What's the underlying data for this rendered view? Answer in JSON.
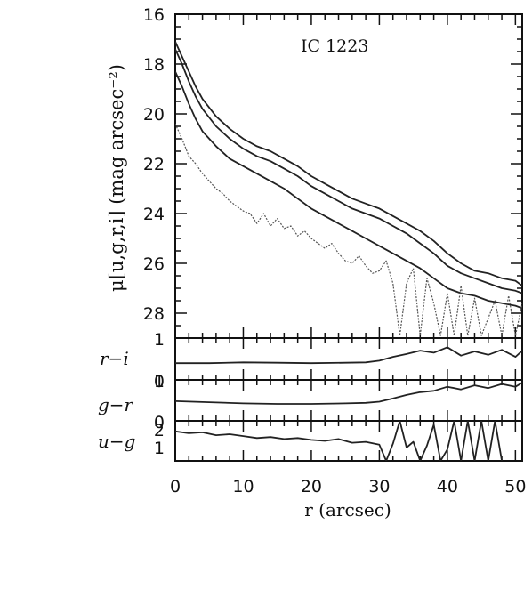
{
  "chart_data": {
    "type": "line",
    "title": "IC 1223",
    "xlabel": "r (arcsec)",
    "xlim": [
      0,
      51
    ],
    "xticks": [
      0,
      10,
      20,
      30,
      40,
      50
    ],
    "panels": [
      {
        "id": "mu",
        "ylabel": "μ[u,g,r,i] (mag arcsec⁻²)",
        "ylim": [
          29,
          16
        ],
        "yticks": [
          16,
          18,
          20,
          22,
          24,
          26,
          28
        ],
        "series": [
          {
            "style": "solid",
            "x": [
              0,
              1,
              2,
              3,
              4,
              6,
              8,
              10,
              12,
              14,
              16,
              18,
              20,
              22,
              24,
              26,
              28,
              30,
              32,
              34,
              36,
              38,
              40,
              42,
              44,
              46,
              48,
              50,
              51
            ],
            "y": [
              17.1,
              17.7,
              18.3,
              18.9,
              19.4,
              20.1,
              20.6,
              21.0,
              21.3,
              21.5,
              21.8,
              22.1,
              22.5,
              22.8,
              23.1,
              23.4,
              23.6,
              23.8,
              24.1,
              24.4,
              24.7,
              25.1,
              25.6,
              26.0,
              26.3,
              26.4,
              26.6,
              26.7,
              26.9
            ]
          },
          {
            "style": "solid",
            "x": [
              0,
              1,
              2,
              3,
              4,
              6,
              8,
              10,
              12,
              14,
              16,
              18,
              20,
              22,
              24,
              26,
              28,
              30,
              32,
              34,
              36,
              38,
              40,
              42,
              44,
              46,
              48,
              50,
              51
            ],
            "y": [
              17.4,
              18.0,
              18.7,
              19.3,
              19.8,
              20.5,
              21.0,
              21.4,
              21.7,
              21.9,
              22.2,
              22.5,
              22.9,
              23.2,
              23.5,
              23.8,
              24.0,
              24.2,
              24.5,
              24.8,
              25.2,
              25.6,
              26.1,
              26.4,
              26.6,
              26.8,
              27.0,
              27.1,
              27.2
            ]
          },
          {
            "style": "solid",
            "x": [
              0,
              1,
              2,
              3,
              4,
              6,
              8,
              10,
              12,
              14,
              16,
              18,
              20,
              22,
              24,
              26,
              28,
              30,
              32,
              34,
              36,
              38,
              40,
              42,
              44,
              46,
              48,
              50,
              51
            ],
            "y": [
              18.3,
              18.9,
              19.6,
              20.2,
              20.7,
              21.3,
              21.8,
              22.1,
              22.4,
              22.7,
              23.0,
              23.4,
              23.8,
              24.1,
              24.4,
              24.7,
              25.0,
              25.3,
              25.6,
              25.9,
              26.2,
              26.6,
              27.0,
              27.2,
              27.3,
              27.5,
              27.6,
              27.7,
              27.8
            ]
          },
          {
            "style": "dotted",
            "x": [
              0,
              1,
              2,
              3,
              4,
              5,
              6,
              7,
              8,
              9,
              10,
              11,
              12,
              13,
              14,
              15,
              16,
              17,
              18,
              19,
              20,
              21,
              22,
              23,
              24,
              25,
              26,
              27,
              28,
              29,
              30,
              31,
              32,
              33,
              34,
              35,
              36,
              37,
              38,
              39,
              40,
              41,
              42,
              43,
              44,
              45,
              46,
              47,
              48,
              49,
              50,
              51
            ],
            "y": [
              20.4,
              21.0,
              21.7,
              22.0,
              22.4,
              22.7,
              23.0,
              23.2,
              23.5,
              23.7,
              23.9,
              24.0,
              24.4,
              24.0,
              24.5,
              24.2,
              24.6,
              24.5,
              24.9,
              24.7,
              25.0,
              25.2,
              25.4,
              25.2,
              25.6,
              25.9,
              26.0,
              25.7,
              26.1,
              26.4,
              26.3,
              25.9,
              26.8,
              28.9,
              26.8,
              26.2,
              28.9,
              26.6,
              27.6,
              28.9,
              27.2,
              28.9,
              26.9,
              28.9,
              27.4,
              28.9,
              28.2,
              27.5,
              28.9,
              27.3,
              28.9,
              27.6
            ]
          }
        ]
      },
      {
        "id": "r-i",
        "ylabel": "r−i",
        "ylim": [
          0,
          1
        ],
        "ytick_labels": [
          "1",
          "0"
        ],
        "series": [
          {
            "style": "solid",
            "x": [
              0,
              5,
              10,
              15,
              20,
              25,
              28,
              30,
              32,
              34,
              36,
              38,
              40,
              42,
              44,
              46,
              48,
              50,
              51
            ],
            "y": [
              0.4,
              0.4,
              0.42,
              0.41,
              0.4,
              0.41,
              0.42,
              0.46,
              0.55,
              0.62,
              0.7,
              0.65,
              0.78,
              0.58,
              0.68,
              0.6,
              0.72,
              0.55,
              0.7
            ]
          }
        ]
      },
      {
        "id": "g-r",
        "ylabel": "g−r",
        "ylim": [
          0,
          1.5
        ],
        "ytick_labels": [
          "1",
          "0"
        ],
        "series": [
          {
            "style": "solid",
            "x": [
              0,
              5,
              10,
              15,
              20,
              25,
              28,
              30,
              32,
              34,
              36,
              38,
              40,
              42,
              44,
              46,
              48,
              50,
              51
            ],
            "y": [
              0.72,
              0.68,
              0.64,
              0.62,
              0.62,
              0.64,
              0.66,
              0.7,
              0.82,
              0.95,
              1.05,
              1.1,
              1.25,
              1.15,
              1.3,
              1.2,
              1.35,
              1.25,
              1.4
            ]
          }
        ]
      },
      {
        "id": "u-g",
        "ylabel": "u−g",
        "ylim": [
          0.5,
          2.6
        ],
        "ytick_labels": [
          "2",
          "1"
        ],
        "series": [
          {
            "style": "solid",
            "x": [
              0,
              2,
              4,
              6,
              8,
              10,
              12,
              14,
              16,
              18,
              20,
              22,
              24,
              26,
              28,
              30,
              31,
              32,
              33,
              34,
              35,
              36,
              37,
              38,
              39,
              40,
              41,
              42,
              43,
              44,
              45,
              46,
              47,
              48
            ],
            "y": [
              2.05,
              1.95,
              2.0,
              1.85,
              1.9,
              1.8,
              1.7,
              1.75,
              1.65,
              1.7,
              1.6,
              1.55,
              1.65,
              1.45,
              1.5,
              1.35,
              0.5,
              1.4,
              2.6,
              1.2,
              1.5,
              0.5,
              1.3,
              2.4,
              0.5,
              1.1,
              2.6,
              0.5,
              2.6,
              0.5,
              2.6,
              0.5,
              2.6,
              0.5
            ]
          }
        ]
      }
    ]
  }
}
